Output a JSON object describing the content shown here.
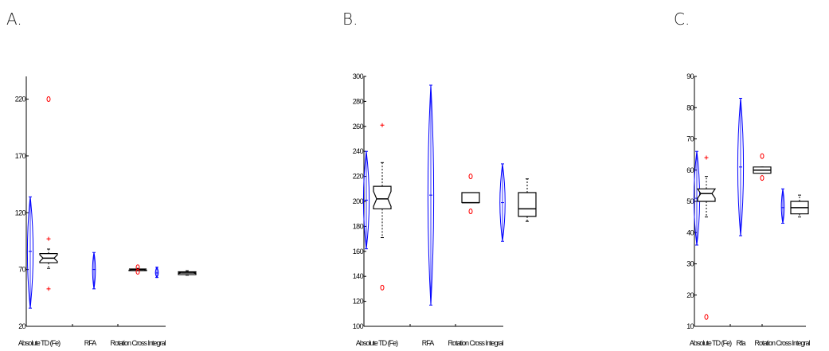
{
  "panels": [
    {
      "label": "A."
    },
    {
      "label": "B."
    },
    {
      "label": "C."
    }
  ],
  "colors": {
    "violin": "#0000ff",
    "box": "#000000",
    "outlier_plus": "#ff0000",
    "outlier_circle": "#ff0000"
  },
  "chart_data": [
    {
      "type": "box",
      "ylim": [
        20,
        240
      ],
      "yticks": [
        20,
        70,
        120,
        170,
        220
      ],
      "categories": [
        "Absolute TD (Fe)",
        "RFA",
        "Rotation Cross Integral"
      ],
      "groups": [
        {
          "violin": {
            "min": 36,
            "max": 134,
            "center": 86
          },
          "box": {
            "q1": 76,
            "median": 80,
            "q3": 84,
            "notch": 3,
            "wmin": 71,
            "wmax": 88
          },
          "outliers_plus": [
            53,
            97
          ],
          "outliers_circle": [
            220
          ]
        },
        {
          "violin": {
            "min": 53,
            "max": 85,
            "center": 70
          },
          "box": {
            "q1": 69,
            "median": 70,
            "q3": 70.5,
            "notch": 0.5,
            "wmin": 69,
            "wmax": 71
          },
          "outliers_plus": [],
          "outliers_circle": [
            68,
            72
          ]
        },
        {
          "violin": {
            "min": 63,
            "max": 72,
            "center": 67
          },
          "box": {
            "q1": 65.5,
            "median": 67,
            "q3": 68,
            "notch": 0.5,
            "wmin": 65,
            "wmax": 69
          },
          "outliers_plus": [],
          "outliers_circle": []
        }
      ]
    },
    {
      "type": "box",
      "ylim": [
        100,
        300
      ],
      "yticks": [
        100,
        120,
        140,
        160,
        180,
        200,
        220,
        240,
        260,
        280,
        300
      ],
      "categories": [
        "Absolute TD (Fe)",
        "RFA",
        "Rotation Cross Integral"
      ],
      "groups": [
        {
          "violin": {
            "min": 162,
            "max": 240,
            "center": 201
          },
          "box": {
            "q1": 194,
            "median": 202,
            "q3": 212,
            "notch": 6,
            "wmin": 171,
            "wmax": 231
          },
          "outliers_plus": [
            261
          ],
          "outliers_circle": [
            131
          ]
        },
        {
          "violin": {
            "min": 117,
            "max": 293,
            "center": 205
          },
          "box": {
            "q1": 199,
            "median": 199,
            "q3": 207,
            "notch": 0,
            "wmin": 199,
            "wmax": 207
          },
          "outliers_plus": [],
          "outliers_circle": [
            192,
            220
          ]
        },
        {
          "violin": {
            "min": 168,
            "max": 230,
            "center": 199
          },
          "box": {
            "q1": 188,
            "median": 194,
            "q3": 207,
            "notch": 0,
            "wmin": 184,
            "wmax": 218
          },
          "outliers_plus": [],
          "outliers_circle": []
        }
      ]
    },
    {
      "type": "box",
      "ylim": [
        10,
        90
      ],
      "yticks": [
        10,
        20,
        30,
        40,
        50,
        60,
        70,
        80,
        90
      ],
      "categories": [
        "Absolute TD (Fe)",
        "Rfa",
        "Rotation Cross Integral"
      ],
      "groups": [
        {
          "violin": {
            "min": 36,
            "max": 66,
            "center": 51
          },
          "box": {
            "q1": 50,
            "median": 52.5,
            "q3": 54,
            "notch": 1.5,
            "wmin": 45,
            "wmax": 58
          },
          "outliers_plus": [
            64
          ],
          "outliers_circle": [
            13
          ]
        },
        {
          "violin": {
            "min": 39,
            "max": 83,
            "center": 61
          },
          "box": {
            "q1": 59,
            "median": 60,
            "q3": 61,
            "notch": 0,
            "wmin": 59,
            "wmax": 61
          },
          "outliers_plus": [],
          "outliers_circle": [
            57.5,
            64.5
          ]
        },
        {
          "violin": {
            "min": 43,
            "max": 54,
            "center": 48
          },
          "box": {
            "q1": 46,
            "median": 48,
            "q3": 50,
            "notch": 0,
            "wmin": 45,
            "wmax": 52
          },
          "outliers_plus": [],
          "outliers_circle": []
        }
      ]
    }
  ]
}
